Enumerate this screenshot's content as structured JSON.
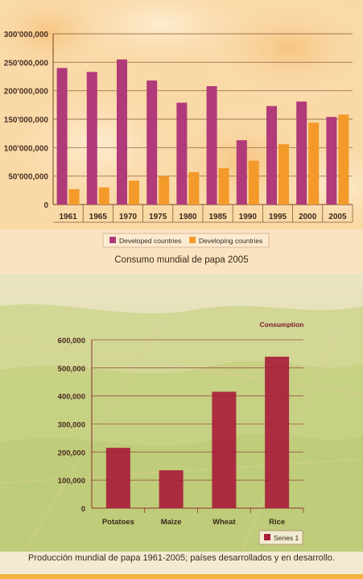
{
  "colors": {
    "developed": "#b03a7a",
    "developing": "#f39a2a",
    "series1": "#a81e3a",
    "stripe": "#f2b33f"
  },
  "captions": {
    "top": "Consumo mundial de papa 2005",
    "bottom": "Producción mundial de papa 1961-2005; países desarrollados y en desarrollo."
  },
  "chart_data": [
    {
      "type": "bar",
      "categories": [
        "1961",
        "1965",
        "1970",
        "1975",
        "1980",
        "1985",
        "1990",
        "1995",
        "2000",
        "2005"
      ],
      "series": [
        {
          "name": "Developed countries",
          "values": [
            240000000,
            233000000,
            255000000,
            218000000,
            179000000,
            208000000,
            113000000,
            173000000,
            181000000,
            154000000
          ]
        },
        {
          "name": "Developing countries",
          "values": [
            27000000,
            30000000,
            42000000,
            50000000,
            57000000,
            64000000,
            77000000,
            106000000,
            144000000,
            158000000
          ]
        }
      ],
      "yticks": [
        "0",
        "50'000,000",
        "100'000,000",
        "150'000,000",
        "200'000,000",
        "250'000,000",
        "300'000,000"
      ],
      "ylim": [
        0,
        300000000
      ],
      "legend": "bottom",
      "grid": true
    },
    {
      "type": "bar",
      "title": "Consumption",
      "categories": [
        "Potatoes",
        "Maize",
        "Wheat",
        "Rice"
      ],
      "series": [
        {
          "name": "Series 1",
          "values": [
            215000,
            135000,
            415000,
            540000
          ]
        }
      ],
      "yticks": [
        "0",
        "100,000",
        "200,000",
        "300,000",
        "400,000",
        "500,000",
        "600,000"
      ],
      "ylim": [
        0,
        600000
      ],
      "legend": "bottom-right",
      "grid": true
    }
  ]
}
